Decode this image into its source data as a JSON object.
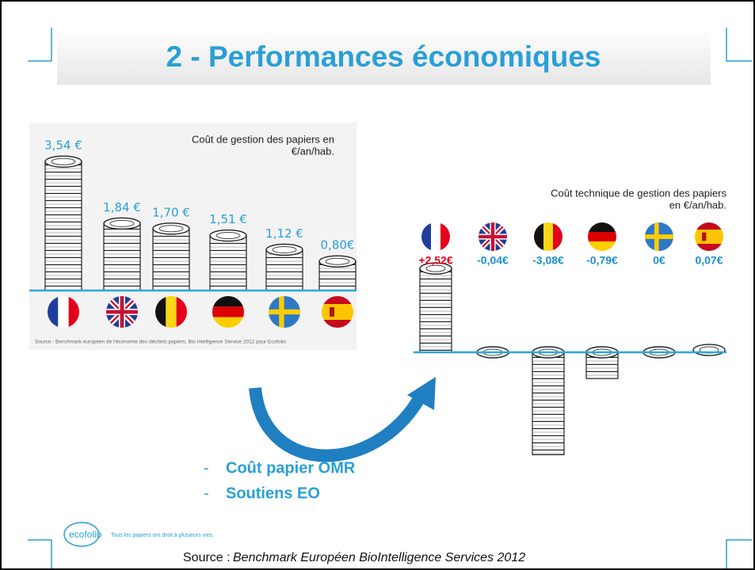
{
  "slide": {
    "title": "2 - Performances économiques",
    "bullets": [
      "Coût papier OMR",
      "Soutiens EO"
    ],
    "logo": "ecofolio",
    "tagline": "Tous les papiers ont droit à plusieurs vies.",
    "footer_prefix": "Source :",
    "footer_source": "Benchmark Européen BioIntelligence Services 2012"
  },
  "chart_data": [
    {
      "type": "bar",
      "title": [
        "Coût de gestion des papiers en",
        "€/an/hab."
      ],
      "categories": [
        null,
        null,
        null,
        null,
        null,
        null
      ],
      "values": [
        3.54,
        1.84,
        1.7,
        1.51,
        1.12,
        0.8
      ],
      "value_labels": [
        "3,54 €",
        "1,84 €",
        "1,70 €",
        "1,51 €",
        "1,12 €",
        "0,80€"
      ],
      "label_color": "#2a9fd6",
      "line_color": "#29a8e0",
      "source": "Source : Benchmark européen de l'économie des déchets papiers, Bio Intelligence Service 2012 pour Ecofolio"
    },
    {
      "type": "bar",
      "title": [
        "Coût technique de gestion des papiers",
        "en €/an/hab."
      ],
      "categories": [
        null,
        null,
        null,
        null,
        null,
        null
      ],
      "values": [
        2.52,
        -0.04,
        -3.08,
        -0.79,
        0,
        0.07
      ],
      "value_labels": [
        "+2,52€",
        "-0,04€",
        "-3,08€",
        "-0,79€",
        "0€",
        "0,07€"
      ],
      "label_colors": [
        "#e3001b",
        "#1f8fd0",
        "#1f8fd0",
        "#1f8fd0",
        "#1f8fd0",
        "#1f8fd0"
      ],
      "line_color": "#29a8e0"
    }
  ]
}
